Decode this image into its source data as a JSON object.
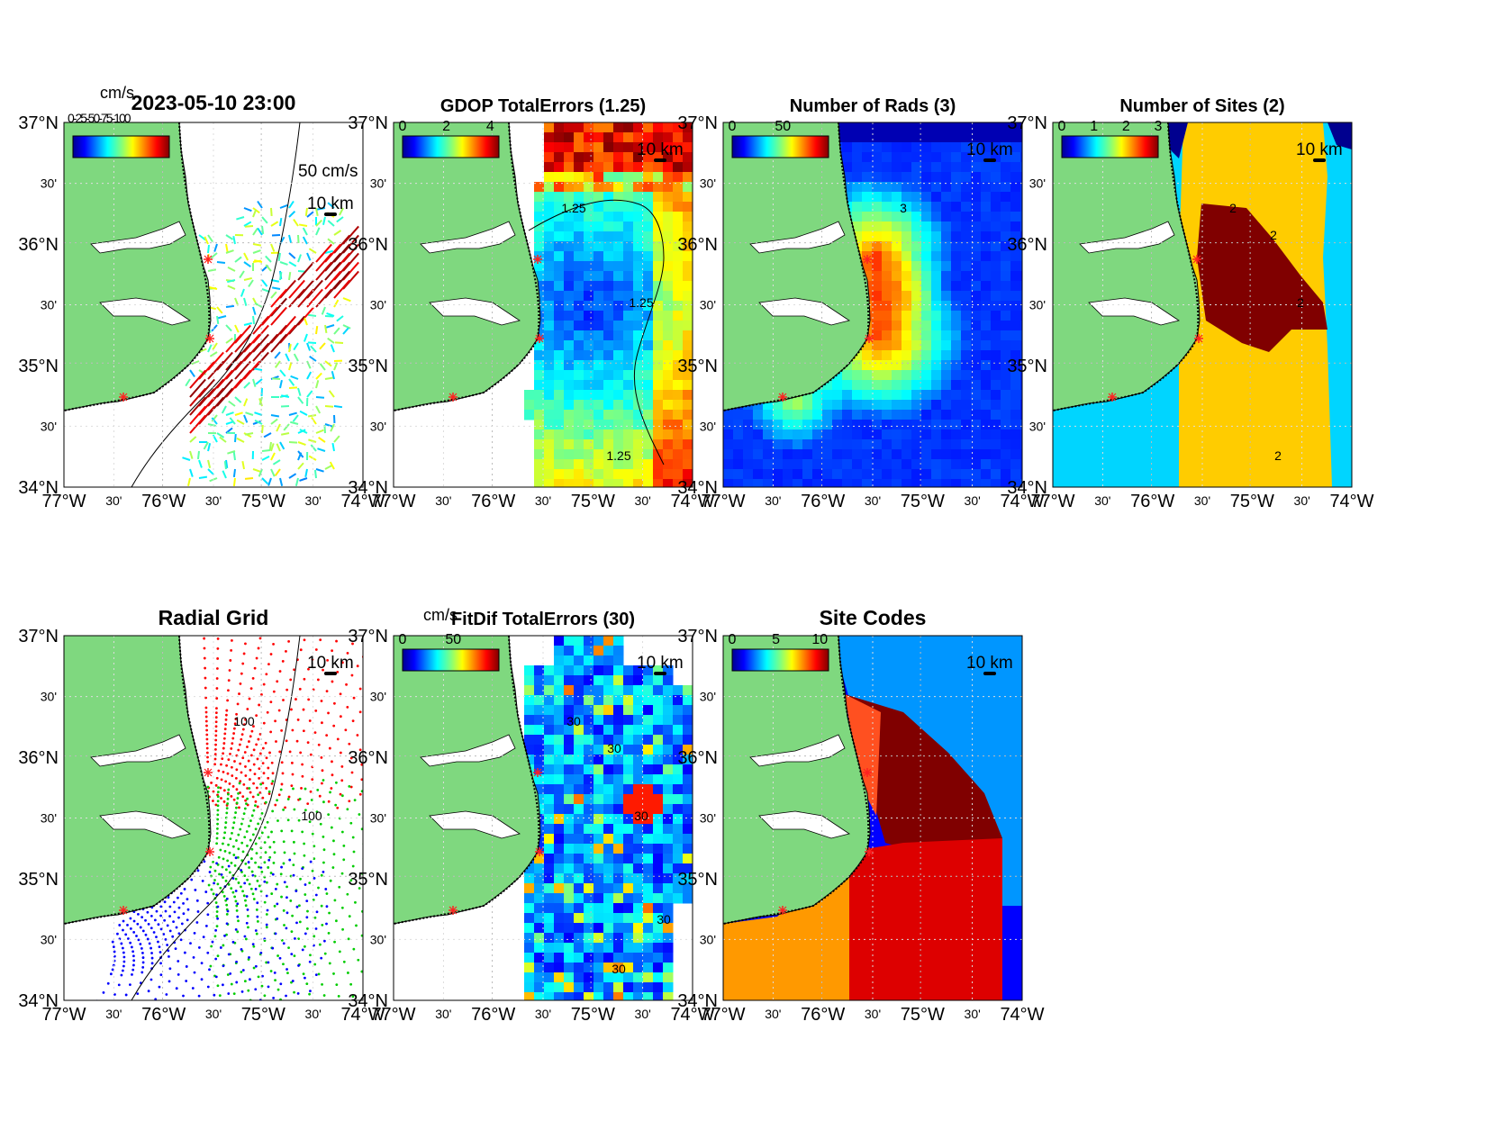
{
  "figure": {
    "timestamp": "2023-05-10 23:00",
    "axes_ticks": {
      "lat_major": [
        "37°N",
        "36°N",
        "35°N",
        "34°N"
      ],
      "lat_minor": "30'",
      "lon_major": [
        "77°W",
        "76°W",
        "75°W",
        "74°W"
      ],
      "lon_minor": "30'"
    },
    "scale_bar": "10 km",
    "colors": {
      "land": "#7fd87f",
      "ocean": "#ffffff",
      "site_marker": "#ff2020",
      "colormap": "jet"
    }
  },
  "panels": [
    {
      "id": "currents",
      "title": "2023-05-10 23:00",
      "units": "cm/s",
      "vector_scale_label": "50 cm/s",
      "colorbar_ticks": [],
      "overlapped_ticks": "0-25-50-75-100"
    },
    {
      "id": "gdop",
      "title": "GDOP TotalErrors (1.25)",
      "colorbar_ticks": [
        "0",
        "2",
        "4"
      ],
      "contour_labels": [
        "1.25",
        "1.25",
        "1.25"
      ]
    },
    {
      "id": "nrads",
      "title": "Number of Rads (3)",
      "colorbar_ticks": [
        "0",
        "50"
      ],
      "contour_labels": [
        "3"
      ]
    },
    {
      "id": "nsites",
      "title": "Number of Sites (2)",
      "colorbar_ticks": [
        "0",
        "1",
        "2",
        "3"
      ],
      "contour_labels": [
        "2",
        "2",
        "2",
        "2"
      ]
    },
    {
      "id": "radial-grid",
      "title": "Radial Grid",
      "colorbar_ticks": [],
      "contour_labels": [
        "100",
        "100"
      ],
      "site_colors": [
        "#ff0000",
        "#00cc00",
        "#0000ff"
      ]
    },
    {
      "id": "fitdif",
      "title": "FitDif TotalErrors (30)",
      "units": "cm/s",
      "colorbar_ticks": [
        "0",
        "50"
      ],
      "contour_labels": [
        "30",
        "30",
        "30",
        "30",
        "30"
      ]
    },
    {
      "id": "site-codes",
      "title": "Site Codes",
      "colorbar_ticks": [
        "0",
        "5",
        "10"
      ],
      "contour_labels": []
    }
  ]
}
